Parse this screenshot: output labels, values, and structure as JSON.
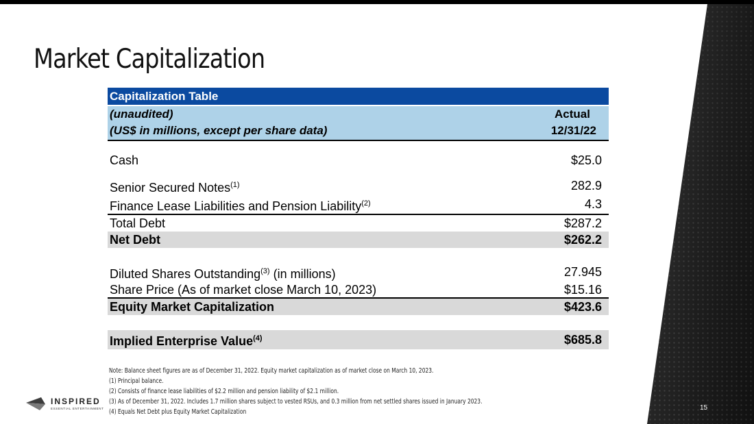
{
  "slide": {
    "title": "Market Capitalization",
    "page_number": "15"
  },
  "table": {
    "header_title": "Capitalization Table",
    "sub_left_1": "(unaudited)",
    "sub_left_2": "(US$ in millions, except per share data)",
    "col_label_1": "Actual",
    "col_label_2": "12/31/22",
    "rows": [
      {
        "label": "Cash",
        "sup": "",
        "suffix": "",
        "value": "$25.0"
      },
      {
        "label": "Senior Secured Notes",
        "sup": "(1)",
        "suffix": "",
        "value": "282.9"
      },
      {
        "label": "Finance Lease Liabilities and Pension Liability",
        "sup": "(2)",
        "suffix": "",
        "value": "4.3"
      },
      {
        "label": "Total Debt",
        "sup": "",
        "suffix": "",
        "value": "$287.2"
      },
      {
        "label": "Net Debt",
        "sup": "",
        "suffix": "",
        "value": "$262.2"
      },
      {
        "label": "Diluted Shares Outstanding",
        "sup": "(3)",
        "suffix": " (in millions)",
        "value": "27.945"
      },
      {
        "label": "Share Price (As of market close March 10, 2023)",
        "sup": "",
        "suffix": "",
        "value": "$15.16"
      },
      {
        "label": "Equity Market Capitalization",
        "sup": "",
        "suffix": "",
        "value": "$423.6"
      },
      {
        "label": "Implied Enterprise Value",
        "sup": "(4)",
        "suffix": "",
        "value": "$685.8"
      }
    ]
  },
  "notes": [
    "Note: Balance sheet figures are as of December 31, 2022. Equity market capitalization as of market close on March 10, 2023.",
    "(1) Principal balance.",
    "(2) Consists of finance lease liabilities of $2.2 million and pension liability of $2.1 million.",
    "(3) As of December 31, 2022.  Includes 1.7 million shares subject to vested RSUs, and 0.3 million from net settled shares issued in January 2023.",
    "(4) Equals Net Debt plus Equity Market Capitalization"
  ],
  "logo": {
    "name": "INSPIRED",
    "tagline": "ESSENTIAL ENTERTAINMENT"
  },
  "colors": {
    "header_dark": "#0b4aa0",
    "header_light": "#aed2e8",
    "row_shade": "#d9d9d9",
    "panel_dark": "#2b2b2b"
  }
}
